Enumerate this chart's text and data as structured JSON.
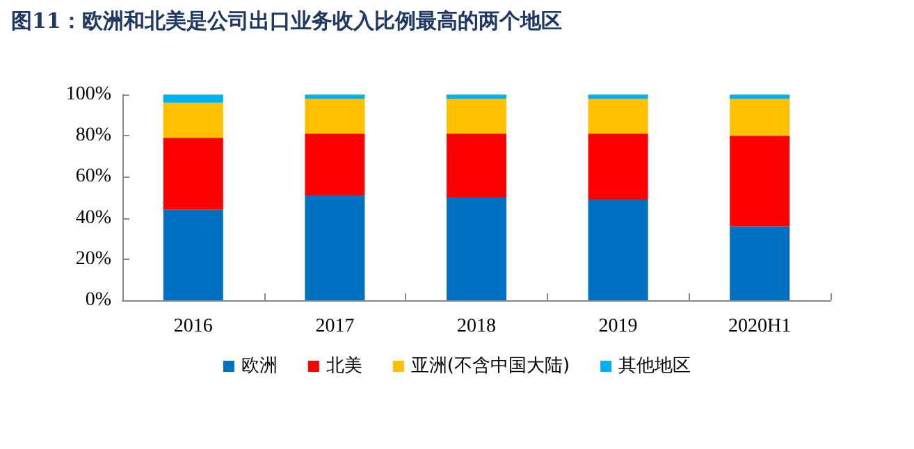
{
  "chart_data": {
    "type": "bar",
    "title": "图11：欧洲和北美是公司出口业务收入比例最高的两个地区",
    "categories": [
      "2016",
      "2017",
      "2018",
      "2019",
      "2020H1"
    ],
    "stacked": true,
    "series": [
      {
        "name": "欧洲",
        "color": "#0070c0",
        "values": [
          44,
          51,
          50,
          49,
          36
        ]
      },
      {
        "name": "北美",
        "color": "#ff0000",
        "values": [
          35,
          30,
          31,
          32,
          44
        ]
      },
      {
        "name": "亚洲(不含中国大陆)",
        "color": "#ffc000",
        "values": [
          17,
          17,
          17,
          17,
          18
        ]
      },
      {
        "name": "其他地区",
        "color": "#00b0f0",
        "values": [
          4,
          2,
          2,
          2,
          2
        ]
      }
    ],
    "ylim": [
      0,
      100
    ],
    "yticks": [
      {
        "value": 0,
        "label": "0%"
      },
      {
        "value": 20,
        "label": "20%"
      },
      {
        "value": 40,
        "label": "40%"
      },
      {
        "value": 60,
        "label": "60%"
      },
      {
        "value": 80,
        "label": "80%"
      },
      {
        "value": 100,
        "label": "100%"
      }
    ],
    "grid": false,
    "legend": "bottom"
  }
}
